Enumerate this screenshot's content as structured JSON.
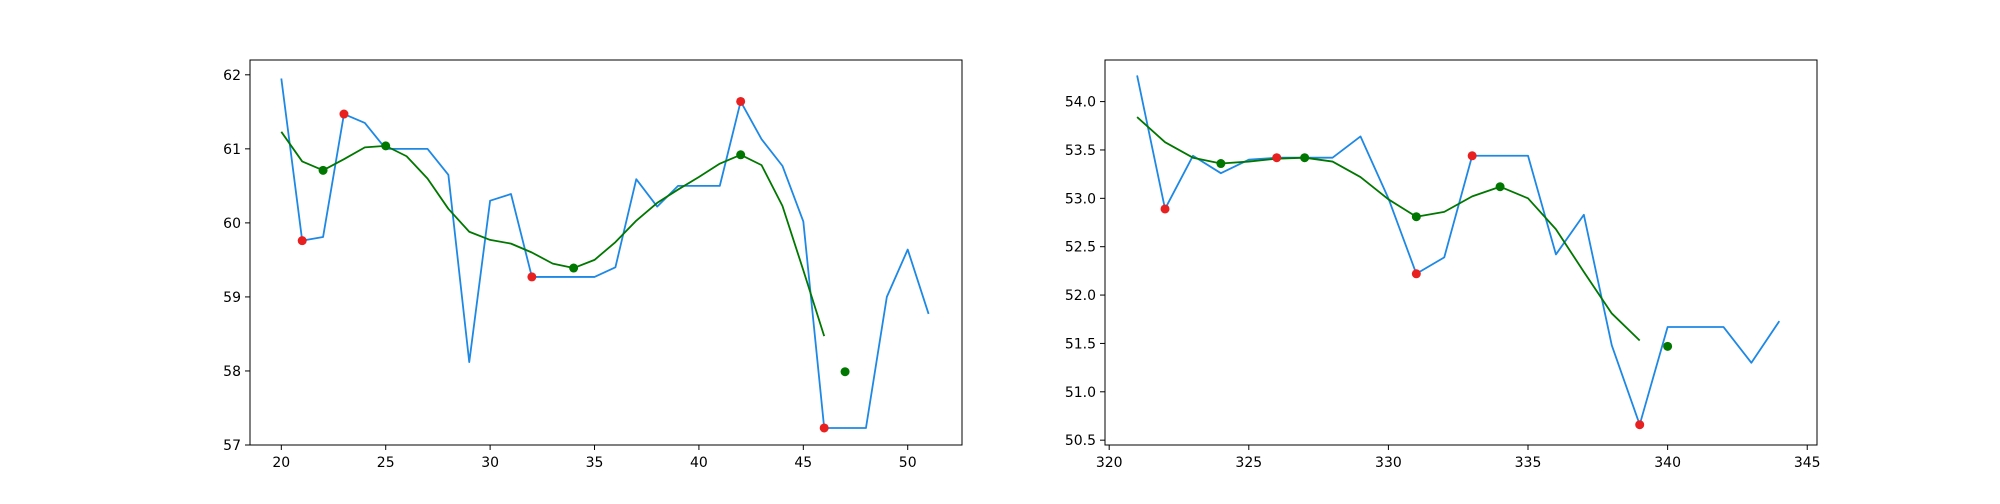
{
  "colors": {
    "price_line": "#1e88e5",
    "smooth_line": "#007700",
    "red_marker": "#e82020",
    "green_marker": "#007700"
  },
  "chart_data": [
    {
      "type": "line",
      "xlim": [
        18.5,
        52.6
      ],
      "ylim": [
        57.0,
        62.2
      ],
      "xticks": [
        20,
        25,
        30,
        35,
        40,
        45,
        50
      ],
      "yticks": [
        57,
        58,
        59,
        60,
        61,
        62
      ],
      "grid": false,
      "series": [
        {
          "kind": "line",
          "color_key": "price_line",
          "x": [
            20,
            21,
            22,
            23,
            24,
            25,
            26,
            27,
            28,
            29,
            30,
            31,
            32,
            33,
            34,
            35,
            36,
            37,
            38,
            39,
            40,
            41,
            42,
            43,
            44,
            45,
            46,
            47,
            48,
            49,
            50,
            51
          ],
          "y": [
            61.95,
            59.76,
            59.81,
            61.47,
            61.35,
            61.0,
            61.0,
            61.0,
            60.65,
            58.12,
            60.3,
            60.39,
            59.27,
            59.27,
            59.27,
            59.27,
            59.4,
            60.59,
            60.22,
            60.5,
            60.5,
            60.5,
            61.64,
            61.13,
            60.77,
            60.02,
            57.23,
            57.23,
            57.23,
            59.0,
            59.64,
            58.77
          ]
        },
        {
          "kind": "line",
          "color_key": "smooth_line",
          "x": [
            20,
            21,
            22,
            23,
            24,
            25,
            26,
            27,
            28,
            29,
            30,
            31,
            32,
            33,
            34,
            35,
            36,
            37,
            38,
            39,
            40,
            41,
            42,
            43,
            44,
            45,
            46
          ],
          "y": [
            61.23,
            60.83,
            60.71,
            60.86,
            61.02,
            61.04,
            60.9,
            60.6,
            60.19,
            59.88,
            59.77,
            59.72,
            59.6,
            59.45,
            59.39,
            59.5,
            59.74,
            60.03,
            60.27,
            60.45,
            60.62,
            60.8,
            60.92,
            60.78,
            60.23,
            59.36,
            58.47
          ]
        },
        {
          "kind": "scatter",
          "color_key": "red_marker",
          "x": [
            21,
            23,
            32,
            42,
            46
          ],
          "y": [
            59.76,
            61.47,
            59.27,
            61.64,
            57.23
          ]
        },
        {
          "kind": "scatter",
          "color_key": "green_marker",
          "x": [
            22,
            25,
            34,
            42,
            47
          ],
          "y": [
            60.71,
            61.04,
            59.39,
            60.92,
            57.99
          ]
        }
      ]
    },
    {
      "type": "line",
      "xlim": [
        319.85,
        345.35
      ],
      "ylim": [
        50.45,
        54.43
      ],
      "xticks": [
        320,
        325,
        330,
        335,
        340,
        345
      ],
      "yticks": [
        50.5,
        51.0,
        51.5,
        52.0,
        52.5,
        53.0,
        53.5,
        54.0
      ],
      "ytick_labels": [
        "50.5",
        "51.0",
        "51.5",
        "52.0",
        "52.5",
        "53.0",
        "53.5",
        "54.0"
      ],
      "grid": false,
      "series": [
        {
          "kind": "line",
          "color_key": "price_line",
          "x": [
            321,
            322,
            323,
            324,
            325,
            326,
            327,
            328,
            329,
            330,
            331,
            332,
            333,
            334,
            335,
            336,
            337,
            338,
            339,
            340,
            341,
            342,
            343,
            344
          ],
          "y": [
            54.27,
            52.89,
            53.44,
            53.26,
            53.4,
            53.42,
            53.42,
            53.42,
            53.64,
            53.0,
            52.22,
            52.39,
            53.44,
            53.44,
            53.44,
            52.42,
            52.83,
            51.48,
            50.66,
            51.67,
            51.67,
            51.67,
            51.3,
            51.73
          ]
        },
        {
          "kind": "line",
          "color_key": "smooth_line",
          "x": [
            321,
            322,
            323,
            324,
            325,
            326,
            327,
            328,
            329,
            330,
            331,
            332,
            333,
            334,
            335,
            336,
            337,
            338,
            339
          ],
          "y": [
            53.84,
            53.58,
            53.42,
            53.36,
            53.38,
            53.41,
            53.42,
            53.38,
            53.22,
            52.99,
            52.81,
            52.86,
            53.02,
            53.12,
            53.0,
            52.68,
            52.24,
            51.81,
            51.53
          ]
        },
        {
          "kind": "scatter",
          "color_key": "red_marker",
          "x": [
            322,
            326,
            331,
            333,
            339
          ],
          "y": [
            52.89,
            53.42,
            52.22,
            53.44,
            50.66
          ]
        },
        {
          "kind": "scatter",
          "color_key": "green_marker",
          "x": [
            324,
            327,
            331,
            334,
            340
          ],
          "y": [
            53.36,
            53.42,
            52.81,
            53.12,
            51.47
          ]
        }
      ]
    }
  ]
}
